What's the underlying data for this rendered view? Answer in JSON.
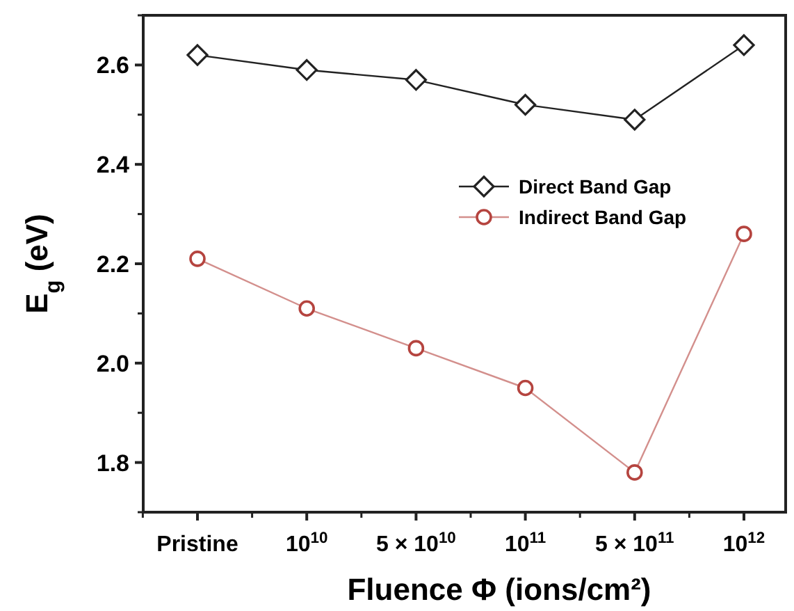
{
  "chart_data": {
    "type": "line",
    "xlabel": "Fluence Φ (ions/cm²)",
    "ylabel": "E$_{g}$ (eV)",
    "categories": [
      "Pristine",
      "10$^{10}$",
      "5 × 10$^{10}$",
      "10$^{11}$",
      "5 × 10$^{11}$",
      "10$^{12}$"
    ],
    "series": [
      {
        "name": "Direct Band Gap",
        "color": "#222222",
        "marker": "diamond",
        "values": [
          2.62,
          2.59,
          2.57,
          2.52,
          2.49,
          2.64
        ]
      },
      {
        "name": "Indirect Band Gap",
        "color": "#b5443f",
        "marker": "circle",
        "values": [
          2.21,
          2.11,
          2.03,
          1.95,
          1.78,
          2.26
        ]
      }
    ],
    "ylim": [
      1.7,
      2.7
    ],
    "yticks": [
      {
        "value": 1.8,
        "label": "1.8"
      },
      {
        "value": 2.0,
        "label": "2.0"
      },
      {
        "value": 2.2,
        "label": "2.2"
      },
      {
        "value": 2.4,
        "label": "2.4"
      },
      {
        "value": 2.6,
        "label": "2.6"
      }
    ],
    "grid": false,
    "legend": "right",
    "line_style": "solid"
  }
}
